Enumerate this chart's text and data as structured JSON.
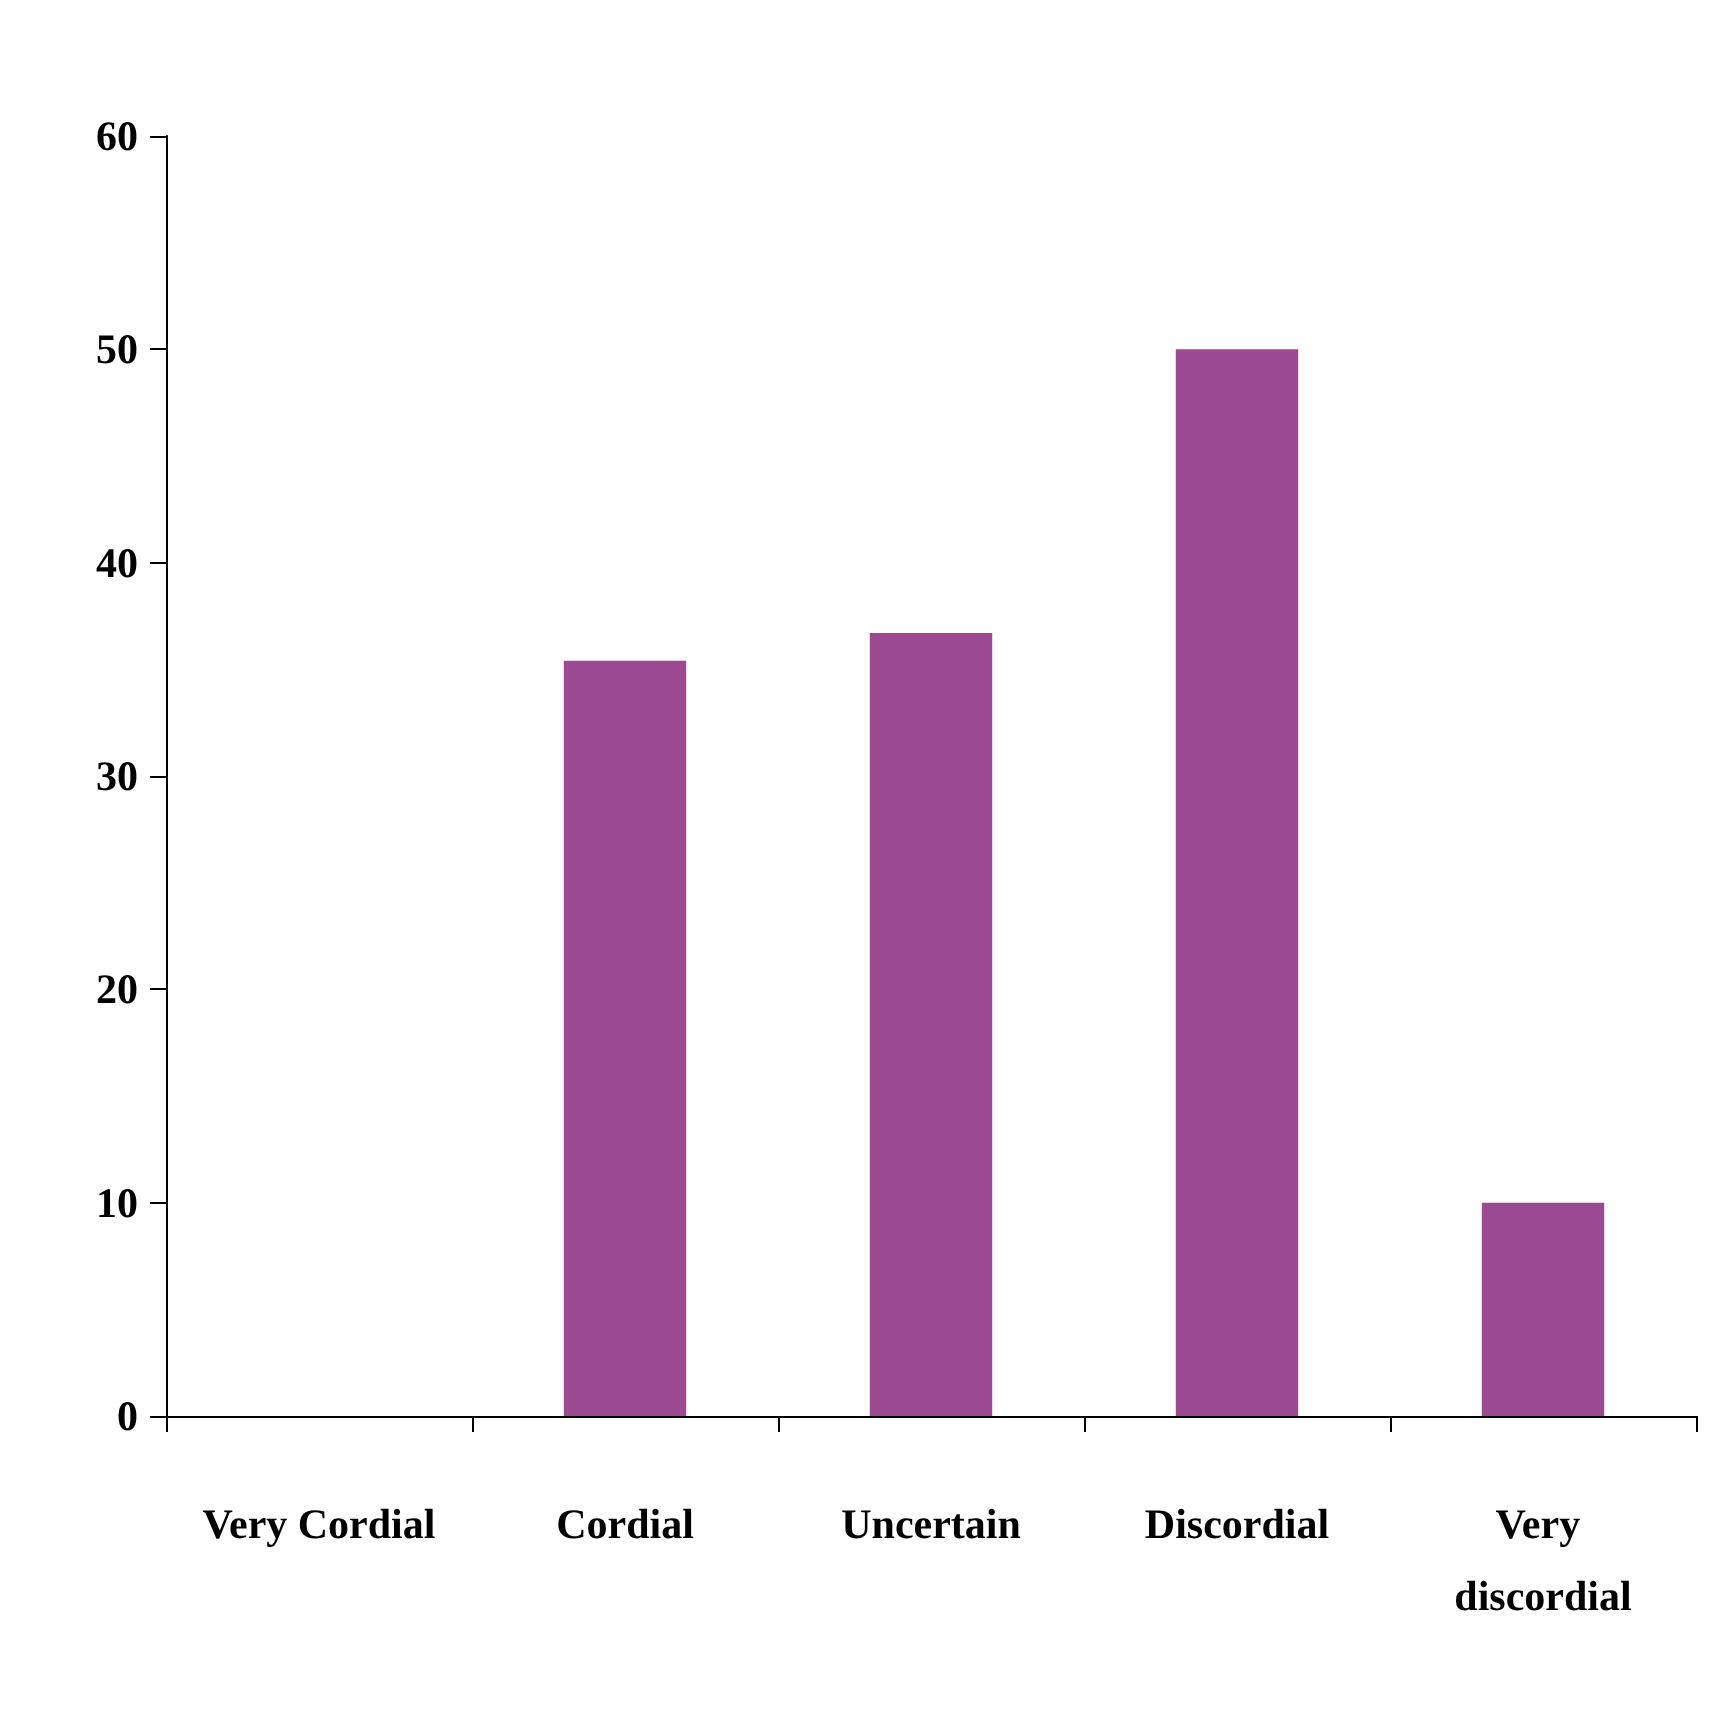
{
  "chart_data": {
    "type": "bar",
    "categories": [
      "Very Cordial",
      "Cordial",
      "Uncertain",
      "Discordial",
      "Very discordial"
    ],
    "values": [
      0,
      35.4,
      36.7,
      50,
      10
    ],
    "color": "#9b4a92",
    "ylim": [
      0,
      60
    ],
    "yticks": [
      0,
      10,
      20,
      30,
      40,
      50,
      60
    ],
    "grid": false
  }
}
